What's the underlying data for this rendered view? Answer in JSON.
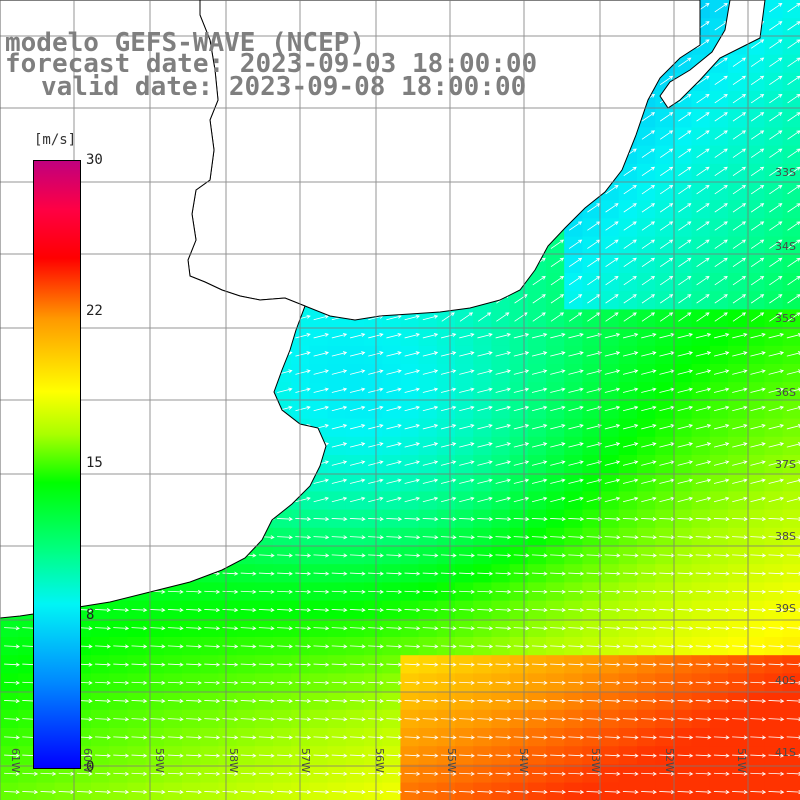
{
  "header": {
    "line1": "modelo GEFS-WAVE (NCEP)",
    "line2": "forecast date: 2023-09-03 18:00:00",
    "line3": "valid date: 2023-09-08 18:00:00"
  },
  "colorbar": {
    "unit": "[m/s]",
    "ticks": [
      {
        "value": 30,
        "label": "30"
      },
      {
        "value": 22,
        "label": "22"
      },
      {
        "value": 15,
        "label": "15"
      },
      {
        "value": 8,
        "label": "8"
      },
      {
        "value": 0,
        "label": "0"
      }
    ],
    "max": 30
  },
  "latitude_labels": [
    "33S",
    "34S",
    "35S",
    "36S",
    "37S",
    "38S",
    "39S",
    "40S",
    "41S"
  ],
  "longitude_labels": [
    "61W",
    "60W",
    "59W",
    "58W",
    "57W",
    "56W",
    "55W",
    "54W",
    "53W",
    "52W",
    "51W"
  ],
  "colors": {
    "land": "#ffffff",
    "coastline": "#000000",
    "grid": "#7a7a7a",
    "arrow": "#ffffff",
    "title": "#7f7f7f"
  }
}
